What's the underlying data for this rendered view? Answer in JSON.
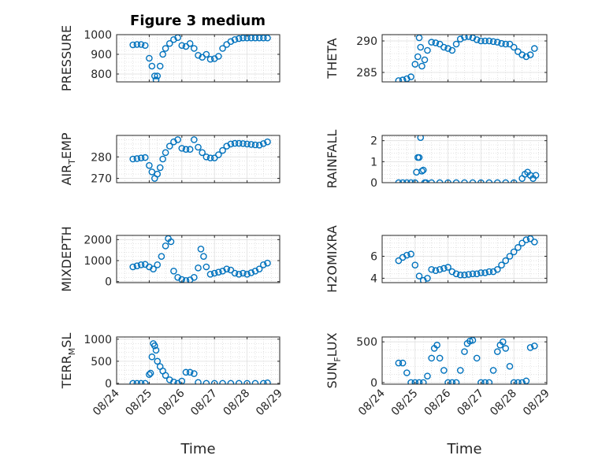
{
  "chart_data": {
    "type": "scatter",
    "title": "Figure 3 medium",
    "marker_color": "#0072BD",
    "x_ticks": [
      "08/24",
      "08/25",
      "08/26",
      "08/27",
      "08/28",
      "08/29"
    ],
    "grid": true,
    "panels": [
      {
        "ylabel": "PRESSURE",
        "ylim": [
          760,
          1000
        ],
        "yticks": [
          800,
          900,
          1000
        ],
        "x": [
          "08/24 12:00",
          "08/24 15:00",
          "08/24 18:00",
          "08/24 21:00",
          "08/25 00:00",
          "08/25 02:00",
          "08/25 04:00",
          "08/25 05:00",
          "08/25 06:00",
          "08/25 08:00",
          "08/25 10:00",
          "08/25 12:00",
          "08/25 15:00",
          "08/25 18:00",
          "08/25 21:00",
          "08/26 00:00",
          "08/26 03:00",
          "08/26 06:00",
          "08/26 09:00",
          "08/26 12:00",
          "08/26 15:00",
          "08/26 18:00",
          "08/26 21:00",
          "08/27 00:00",
          "08/27 03:00",
          "08/27 06:00",
          "08/27 09:00",
          "08/27 12:00",
          "08/27 15:00",
          "08/27 18:00",
          "08/27 21:00",
          "08/28 00:00",
          "08/28 03:00",
          "08/28 06:00",
          "08/28 09:00",
          "08/28 12:00",
          "08/28 15:00"
        ],
        "y": [
          948,
          950,
          950,
          945,
          880,
          840,
          790,
          770,
          790,
          840,
          900,
          930,
          955,
          975,
          985,
          945,
          940,
          955,
          930,
          895,
          885,
          900,
          875,
          878,
          890,
          930,
          950,
          965,
          975,
          980,
          983,
          983,
          983,
          983,
          983,
          983,
          983
        ]
      },
      {
        "ylabel": "THETA",
        "ylim": [
          283.5,
          291
        ],
        "yticks": [
          285,
          290
        ],
        "x": [
          "08/24 12:00",
          "08/24 15:00",
          "08/24 18:00",
          "08/24 21:00",
          "08/25 00:00",
          "08/25 02:00",
          "08/25 03:00",
          "08/25 04:00",
          "08/25 05:00",
          "08/25 07:00",
          "08/25 09:00",
          "08/25 12:00",
          "08/25 15:00",
          "08/25 18:00",
          "08/25 21:00",
          "08/26 00:00",
          "08/26 03:00",
          "08/26 06:00",
          "08/26 09:00",
          "08/26 12:00",
          "08/26 15:00",
          "08/26 18:00",
          "08/26 21:00",
          "08/27 00:00",
          "08/27 03:00",
          "08/27 06:00",
          "08/27 09:00",
          "08/27 12:00",
          "08/27 15:00",
          "08/27 18:00",
          "08/27 21:00",
          "08/28 00:00",
          "08/28 03:00",
          "08/28 06:00",
          "08/28 09:00",
          "08/28 12:00",
          "08/28 15:00"
        ],
        "y": [
          283.7,
          283.8,
          284,
          284.3,
          286.3,
          287.5,
          290.5,
          289,
          286,
          287,
          288.5,
          289.8,
          289.7,
          289.5,
          289,
          288.8,
          288.5,
          289.5,
          290.3,
          290.6,
          290.7,
          290.5,
          290.2,
          290,
          290,
          290,
          289.9,
          289.8,
          289.6,
          289.5,
          289.5,
          289,
          288.3,
          287.8,
          287.5,
          287.8,
          288.8
        ]
      },
      {
        "ylabel": "AIR_TEMP",
        "ylim": [
          268,
          290
        ],
        "yticks": [
          270,
          280
        ],
        "x": [
          "08/24 12:00",
          "08/24 15:00",
          "08/24 18:00",
          "08/24 21:00",
          "08/25 00:00",
          "08/25 02:00",
          "08/25 04:00",
          "08/25 06:00",
          "08/25 08:00",
          "08/25 10:00",
          "08/25 12:00",
          "08/25 15:00",
          "08/25 18:00",
          "08/25 21:00",
          "08/26 00:00",
          "08/26 03:00",
          "08/26 06:00",
          "08/26 09:00",
          "08/26 12:00",
          "08/26 15:00",
          "08/26 18:00",
          "08/26 21:00",
          "08/27 00:00",
          "08/27 03:00",
          "08/27 06:00",
          "08/27 09:00",
          "08/27 12:00",
          "08/27 15:00",
          "08/27 18:00",
          "08/27 21:00",
          "08/28 00:00",
          "08/28 03:00",
          "08/28 06:00",
          "08/28 09:00",
          "08/28 12:00",
          "08/28 15:00"
        ],
        "y": [
          279,
          279.2,
          279.5,
          279.7,
          276,
          273,
          270,
          272,
          275,
          279,
          282,
          285,
          287,
          288,
          284,
          283.5,
          283.5,
          288,
          284.5,
          282,
          280,
          279.5,
          279.5,
          281,
          283,
          285,
          286,
          286.3,
          286.3,
          286.2,
          286,
          285.8,
          285.6,
          285.5,
          286.2,
          287
        ]
      },
      {
        "ylabel": "RAINFALL",
        "ylim": [
          0,
          2.25
        ],
        "yticks": [
          0,
          1,
          2
        ],
        "x": [
          "08/24 12:00",
          "08/24 15:00",
          "08/24 18:00",
          "08/24 21:00",
          "08/25 00:00",
          "08/25 01:00",
          "08/25 02:00",
          "08/25 03:00",
          "08/25 04:00",
          "08/25 05:00",
          "08/25 06:00",
          "08/25 07:00",
          "08/25 08:00",
          "08/25 12:00",
          "08/25 18:00",
          "08/26 00:00",
          "08/26 06:00",
          "08/26 12:00",
          "08/26 18:00",
          "08/27 00:00",
          "08/27 06:00",
          "08/27 12:00",
          "08/27 18:00",
          "08/28 00:00",
          "08/28 06:00",
          "08/28 08:00",
          "08/28 10:00",
          "08/28 12:00",
          "08/28 14:00",
          "08/28 16:00"
        ],
        "y": [
          0,
          0,
          0,
          0,
          0,
          0.5,
          1.2,
          1.2,
          2.15,
          0.55,
          0.6,
          0,
          0,
          0,
          0,
          0,
          0,
          0,
          0,
          0,
          0,
          0,
          0,
          0,
          0.2,
          0.4,
          0.5,
          0.35,
          0.2,
          0.35
        ]
      },
      {
        "ylabel": "MIXDEPTH",
        "ylim": [
          -50,
          2200
        ],
        "yticks": [
          0,
          1000,
          2000
        ],
        "x": [
          "08/24 12:00",
          "08/24 15:00",
          "08/24 18:00",
          "08/24 21:00",
          "08/25 00:00",
          "08/25 03:00",
          "08/25 06:00",
          "08/25 09:00",
          "08/25 12:00",
          "08/25 14:00",
          "08/25 16:00",
          "08/25 18:00",
          "08/25 21:00",
          "08/26 00:00",
          "08/26 03:00",
          "08/26 06:00",
          "08/26 09:00",
          "08/26 12:00",
          "08/26 14:00",
          "08/26 16:00",
          "08/26 18:00",
          "08/26 21:00",
          "08/27 00:00",
          "08/27 03:00",
          "08/27 06:00",
          "08/27 09:00",
          "08/27 12:00",
          "08/27 15:00",
          "08/27 18:00",
          "08/27 21:00",
          "08/28 00:00",
          "08/28 03:00",
          "08/28 06:00",
          "08/28 09:00",
          "08/28 12:00",
          "08/28 15:00"
        ],
        "y": [
          700,
          750,
          800,
          820,
          700,
          600,
          800,
          1200,
          1700,
          2050,
          1900,
          500,
          200,
          100,
          50,
          80,
          200,
          650,
          1550,
          1200,
          700,
          350,
          400,
          450,
          500,
          600,
          550,
          400,
          350,
          400,
          350,
          420,
          500,
          600,
          800,
          880
        ]
      },
      {
        "ylabel": "H2OMIXRA",
        "ylim": [
          3.6,
          7.9
        ],
        "yticks": [
          4,
          6
        ],
        "x": [
          "08/24 12:00",
          "08/24 15:00",
          "08/24 18:00",
          "08/24 21:00",
          "08/25 00:00",
          "08/25 03:00",
          "08/25 06:00",
          "08/25 09:00",
          "08/25 12:00",
          "08/25 15:00",
          "08/25 18:00",
          "08/25 21:00",
          "08/26 00:00",
          "08/26 03:00",
          "08/26 06:00",
          "08/26 09:00",
          "08/26 12:00",
          "08/26 15:00",
          "08/26 18:00",
          "08/26 21:00",
          "08/27 00:00",
          "08/27 03:00",
          "08/27 06:00",
          "08/27 09:00",
          "08/27 12:00",
          "08/27 15:00",
          "08/27 18:00",
          "08/27 21:00",
          "08/28 00:00",
          "08/28 03:00",
          "08/28 06:00",
          "08/28 09:00",
          "08/28 12:00",
          "08/28 15:00"
        ],
        "y": [
          5.6,
          5.9,
          6.1,
          6.2,
          5.2,
          4.2,
          3.8,
          4.0,
          4.8,
          4.7,
          4.8,
          4.9,
          5.0,
          4.6,
          4.4,
          4.3,
          4.3,
          4.35,
          4.4,
          4.4,
          4.5,
          4.5,
          4.6,
          4.6,
          4.8,
          5.2,
          5.6,
          6.0,
          6.4,
          6.8,
          7.2,
          7.5,
          7.6,
          7.3
        ]
      },
      {
        "ylabel": "TERR_MSL",
        "ylim": [
          -20,
          1050
        ],
        "yticks": [
          0,
          500,
          1000
        ],
        "x": [
          "08/24 12:00",
          "08/24 15:00",
          "08/24 18:00",
          "08/24 21:00",
          "08/25 00:00",
          "08/25 01:00",
          "08/25 02:00",
          "08/25 03:00",
          "08/25 04:00",
          "08/25 05:00",
          "08/25 06:00",
          "08/25 08:00",
          "08/25 10:00",
          "08/25 12:00",
          "08/25 15:00",
          "08/25 18:00",
          "08/25 21:00",
          "08/26 00:00",
          "08/26 03:00",
          "08/26 06:00",
          "08/26 09:00",
          "08/26 12:00",
          "08/26 18:00",
          "08/27 00:00",
          "08/27 06:00",
          "08/27 12:00",
          "08/27 18:00",
          "08/28 00:00",
          "08/28 06:00",
          "08/28 12:00",
          "08/28 15:00"
        ],
        "y": [
          0,
          0,
          0,
          0,
          200,
          230,
          600,
          900,
          850,
          750,
          500,
          380,
          280,
          180,
          80,
          30,
          0,
          50,
          250,
          250,
          220,
          20,
          0,
          0,
          0,
          0,
          0,
          0,
          0,
          0,
          10
        ]
      },
      {
        "ylabel": "SUN_FLUX",
        "ylim": [
          -20,
          560
        ],
        "yticks": [
          0,
          500
        ],
        "x": [
          "08/24 12:00",
          "08/24 15:00",
          "08/24 18:00",
          "08/24 21:00",
          "08/25 00:00",
          "08/25 03:00",
          "08/25 06:00",
          "08/25 09:00",
          "08/25 12:00",
          "08/25 14:00",
          "08/25 16:00",
          "08/25 18:00",
          "08/25 21:00",
          "08/26 00:00",
          "08/26 03:00",
          "08/26 06:00",
          "08/26 09:00",
          "08/26 12:00",
          "08/26 14:00",
          "08/26 16:00",
          "08/26 18:00",
          "08/26 21:00",
          "08/27 00:00",
          "08/27 03:00",
          "08/27 06:00",
          "08/27 09:00",
          "08/27 12:00",
          "08/27 14:00",
          "08/27 16:00",
          "08/27 18:00",
          "08/27 21:00",
          "08/28 00:00",
          "08/28 03:00",
          "08/28 06:00",
          "08/28 09:00",
          "08/28 12:00",
          "08/28 15:00"
        ],
        "y": [
          240,
          240,
          120,
          0,
          0,
          0,
          0,
          80,
          300,
          420,
          460,
          300,
          150,
          0,
          0,
          0,
          150,
          380,
          480,
          510,
          520,
          300,
          0,
          0,
          0,
          150,
          380,
          460,
          500,
          420,
          200,
          0,
          0,
          0,
          20,
          430,
          450
        ]
      }
    ]
  }
}
